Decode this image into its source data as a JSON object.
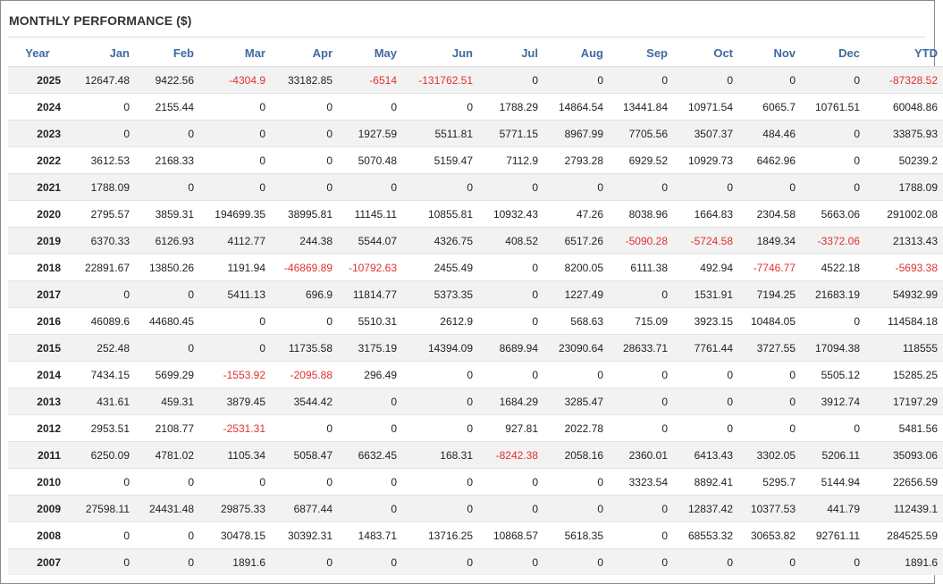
{
  "title": "MONTHLY PERFORMANCE ($)",
  "colors": {
    "header": "#3d6a9e",
    "negative": "#e0312e",
    "stripe": "#f2f2f2"
  },
  "columns": [
    "Year",
    "Jan",
    "Feb",
    "Mar",
    "Apr",
    "May",
    "Jun",
    "Jul",
    "Aug",
    "Sep",
    "Oct",
    "Nov",
    "Dec",
    "YTD"
  ],
  "rows": [
    [
      "2025",
      "12647.48",
      "9422.56",
      "-4304.9",
      "33182.85",
      "-6514",
      "-131762.51",
      "0",
      "0",
      "0",
      "0",
      "0",
      "0",
      "-87328.52"
    ],
    [
      "2024",
      "0",
      "2155.44",
      "0",
      "0",
      "0",
      "0",
      "1788.29",
      "14864.54",
      "13441.84",
      "10971.54",
      "6065.7",
      "10761.51",
      "60048.86"
    ],
    [
      "2023",
      "0",
      "0",
      "0",
      "0",
      "1927.59",
      "5511.81",
      "5771.15",
      "8967.99",
      "7705.56",
      "3507.37",
      "484.46",
      "0",
      "33875.93"
    ],
    [
      "2022",
      "3612.53",
      "2168.33",
      "0",
      "0",
      "5070.48",
      "5159.47",
      "7112.9",
      "2793.28",
      "6929.52",
      "10929.73",
      "6462.96",
      "0",
      "50239.2"
    ],
    [
      "2021",
      "1788.09",
      "0",
      "0",
      "0",
      "0",
      "0",
      "0",
      "0",
      "0",
      "0",
      "0",
      "0",
      "1788.09"
    ],
    [
      "2020",
      "2795.57",
      "3859.31",
      "194699.35",
      "38995.81",
      "11145.11",
      "10855.81",
      "10932.43",
      "47.26",
      "8038.96",
      "1664.83",
      "2304.58",
      "5663.06",
      "291002.08"
    ],
    [
      "2019",
      "6370.33",
      "6126.93",
      "4112.77",
      "244.38",
      "5544.07",
      "4326.75",
      "408.52",
      "6517.26",
      "-5090.28",
      "-5724.58",
      "1849.34",
      "-3372.06",
      "21313.43"
    ],
    [
      "2018",
      "22891.67",
      "13850.26",
      "1191.94",
      "-46869.89",
      "-10792.63",
      "2455.49",
      "0",
      "8200.05",
      "6111.38",
      "492.94",
      "-7746.77",
      "4522.18",
      "-5693.38"
    ],
    [
      "2017",
      "0",
      "0",
      "5411.13",
      "696.9",
      "11814.77",
      "5373.35",
      "0",
      "1227.49",
      "0",
      "1531.91",
      "7194.25",
      "21683.19",
      "54932.99"
    ],
    [
      "2016",
      "46089.6",
      "44680.45",
      "0",
      "0",
      "5510.31",
      "2612.9",
      "0",
      "568.63",
      "715.09",
      "3923.15",
      "10484.05",
      "0",
      "114584.18"
    ],
    [
      "2015",
      "252.48",
      "0",
      "0",
      "11735.58",
      "3175.19",
      "14394.09",
      "8689.94",
      "23090.64",
      "28633.71",
      "7761.44",
      "3727.55",
      "17094.38",
      "118555"
    ],
    [
      "2014",
      "7434.15",
      "5699.29",
      "-1553.92",
      "-2095.88",
      "296.49",
      "0",
      "0",
      "0",
      "0",
      "0",
      "0",
      "5505.12",
      "15285.25"
    ],
    [
      "2013",
      "431.61",
      "459.31",
      "3879.45",
      "3544.42",
      "0",
      "0",
      "1684.29",
      "3285.47",
      "0",
      "0",
      "0",
      "3912.74",
      "17197.29"
    ],
    [
      "2012",
      "2953.51",
      "2108.77",
      "-2531.31",
      "0",
      "0",
      "0",
      "927.81",
      "2022.78",
      "0",
      "0",
      "0",
      "0",
      "5481.56"
    ],
    [
      "2011",
      "6250.09",
      "4781.02",
      "1105.34",
      "5058.47",
      "6632.45",
      "168.31",
      "-8242.38",
      "2058.16",
      "2360.01",
      "6413.43",
      "3302.05",
      "5206.11",
      "35093.06"
    ],
    [
      "2010",
      "0",
      "0",
      "0",
      "0",
      "0",
      "0",
      "0",
      "0",
      "3323.54",
      "8892.41",
      "5295.7",
      "5144.94",
      "22656.59"
    ],
    [
      "2009",
      "27598.11",
      "24431.48",
      "29875.33",
      "6877.44",
      "0",
      "0",
      "0",
      "0",
      "0",
      "12837.42",
      "10377.53",
      "441.79",
      "112439.1"
    ],
    [
      "2008",
      "0",
      "0",
      "30478.15",
      "30392.31",
      "1483.71",
      "13716.25",
      "10868.57",
      "5618.35",
      "0",
      "68553.32",
      "30653.82",
      "92761.11",
      "284525.59"
    ],
    [
      "2007",
      "0",
      "0",
      "1891.6",
      "0",
      "0",
      "0",
      "0",
      "0",
      "0",
      "0",
      "0",
      "0",
      "1891.6"
    ]
  ]
}
